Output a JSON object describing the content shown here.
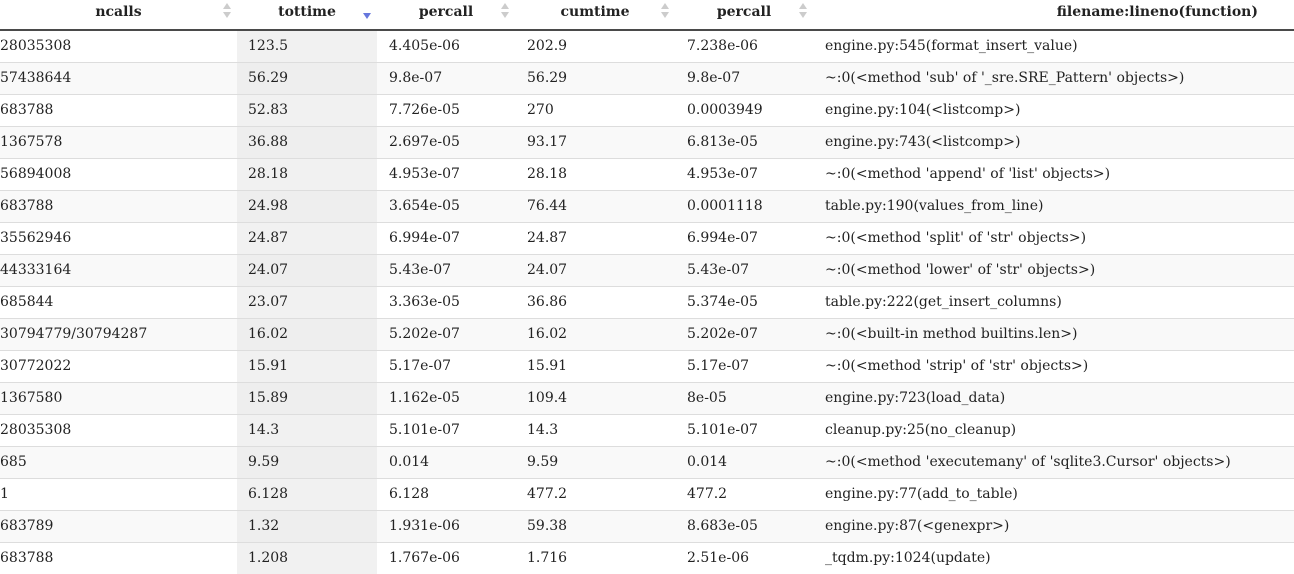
{
  "table": {
    "columns": [
      {
        "label": "ncalls",
        "sort_state": "none"
      },
      {
        "label": "tottime",
        "sort_state": "descending"
      },
      {
        "label": "percall",
        "sort_state": "none"
      },
      {
        "label": "cumtime",
        "sort_state": "none"
      },
      {
        "label": "percall",
        "sort_state": "none"
      },
      {
        "label": "filename:lineno(function)"
      }
    ],
    "sort_colors": {
      "inactive": "#cccccc",
      "active": "#6677dd"
    },
    "rows": [
      {
        "ncalls": "28035308",
        "tottime": "123.5",
        "percall": "4.405e-06",
        "cumtime": "202.9",
        "percall_cum": "7.238e-06",
        "filename": "engine.py:545(format_insert_value)"
      },
      {
        "ncalls": "57438644",
        "tottime": "56.29",
        "percall": "9.8e-07",
        "cumtime": "56.29",
        "percall_cum": "9.8e-07",
        "filename": "~:0(<method 'sub' of '_sre.SRE_Pattern' objects>)"
      },
      {
        "ncalls": "683788",
        "tottime": "52.83",
        "percall": "7.726e-05",
        "cumtime": "270",
        "percall_cum": "0.0003949",
        "filename": "engine.py:104(<listcomp>)"
      },
      {
        "ncalls": "1367578",
        "tottime": "36.88",
        "percall": "2.697e-05",
        "cumtime": "93.17",
        "percall_cum": "6.813e-05",
        "filename": "engine.py:743(<listcomp>)"
      },
      {
        "ncalls": "56894008",
        "tottime": "28.18",
        "percall": "4.953e-07",
        "cumtime": "28.18",
        "percall_cum": "4.953e-07",
        "filename": "~:0(<method 'append' of 'list' objects>)"
      },
      {
        "ncalls": "683788",
        "tottime": "24.98",
        "percall": "3.654e-05",
        "cumtime": "76.44",
        "percall_cum": "0.0001118",
        "filename": "table.py:190(values_from_line)"
      },
      {
        "ncalls": "35562946",
        "tottime": "24.87",
        "percall": "6.994e-07",
        "cumtime": "24.87",
        "percall_cum": "6.994e-07",
        "filename": "~:0(<method 'split' of 'str' objects>)"
      },
      {
        "ncalls": "44333164",
        "tottime": "24.07",
        "percall": "5.43e-07",
        "cumtime": "24.07",
        "percall_cum": "5.43e-07",
        "filename": "~:0(<method 'lower' of 'str' objects>)"
      },
      {
        "ncalls": "685844",
        "tottime": "23.07",
        "percall": "3.363e-05",
        "cumtime": "36.86",
        "percall_cum": "5.374e-05",
        "filename": "table.py:222(get_insert_columns)"
      },
      {
        "ncalls": "30794779/30794287",
        "tottime": "16.02",
        "percall": "5.202e-07",
        "cumtime": "16.02",
        "percall_cum": "5.202e-07",
        "filename": "~:0(<built-in method builtins.len>)"
      },
      {
        "ncalls": "30772022",
        "tottime": "15.91",
        "percall": "5.17e-07",
        "cumtime": "15.91",
        "percall_cum": "5.17e-07",
        "filename": "~:0(<method 'strip' of 'str' objects>)"
      },
      {
        "ncalls": "1367580",
        "tottime": "15.89",
        "percall": "1.162e-05",
        "cumtime": "109.4",
        "percall_cum": "8e-05",
        "filename": "engine.py:723(load_data)"
      },
      {
        "ncalls": "28035308",
        "tottime": "14.3",
        "percall": "5.101e-07",
        "cumtime": "14.3",
        "percall_cum": "5.101e-07",
        "filename": "cleanup.py:25(no_cleanup)"
      },
      {
        "ncalls": "685",
        "tottime": "9.59",
        "percall": "0.014",
        "cumtime": "9.59",
        "percall_cum": "0.014",
        "filename": "~:0(<method 'executemany' of 'sqlite3.Cursor' objects>)"
      },
      {
        "ncalls": "1",
        "tottime": "6.128",
        "percall": "6.128",
        "cumtime": "477.2",
        "percall_cum": "477.2",
        "filename": "engine.py:77(add_to_table)"
      },
      {
        "ncalls": "683789",
        "tottime": "1.32",
        "percall": "1.931e-06",
        "cumtime": "59.38",
        "percall_cum": "8.683e-05",
        "filename": "engine.py:87(<genexpr>)"
      },
      {
        "ncalls": "683788",
        "tottime": "1.208",
        "percall": "1.767e-06",
        "cumtime": "1.716",
        "percall_cum": "2.51e-06",
        "filename": "_tqdm.py:1024(update)"
      }
    ]
  }
}
